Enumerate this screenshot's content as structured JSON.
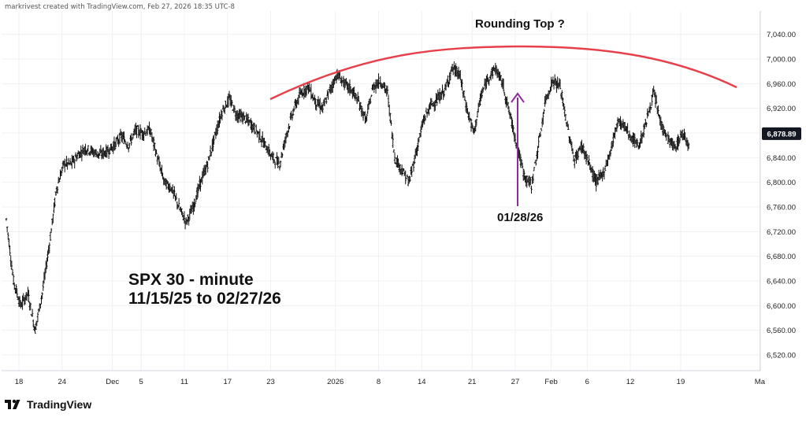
{
  "attribution": "markrivest created with TradingView.com, Feb 27, 2026 18:35 UTC-8",
  "logo_text": "TradingView",
  "colors": {
    "arc": "#e8404a",
    "arrow": "#8e2b9b",
    "bars": "#111111",
    "price_badge": "#131722",
    "grid": "#eef0f3"
  },
  "annotations": {
    "title": "Rounding Top ?",
    "arrow_label": "01/28/26",
    "main_line1": "SPX 30 - minute",
    "main_line2": "11/15/25 to 02/27/26"
  },
  "chart_data": {
    "type": "bar",
    "subtype": "ohlc",
    "instrument": "SPX",
    "timeframe": "30 - minute",
    "range_text": "11/15/25 to 02/27/26",
    "last_price": "6,878.89",
    "ylim": [
      6500,
      7060
    ],
    "y_ticks": [
      "6,520.00",
      "6,560.00",
      "6,600.00",
      "6,640.00",
      "6,680.00",
      "6,720.00",
      "6,760.00",
      "6,800.00",
      "6,840.00",
      "6,880.00",
      "6,920.00",
      "6,960.00",
      "7,000.00",
      "7,040.00"
    ],
    "y_tick_values": [
      6520,
      6560,
      6600,
      6640,
      6680,
      6720,
      6760,
      6800,
      6840,
      6880,
      6920,
      6960,
      7000,
      7040
    ],
    "x_ticks": [
      "18",
      "24",
      "Dec",
      "5",
      "11",
      "17",
      "23",
      "2026",
      "8",
      "14",
      "21",
      "27",
      "Feb",
      "6",
      "12",
      "19",
      "Ma"
    ],
    "x_tick_days": [
      0,
      6,
      13,
      17,
      23,
      29,
      35,
      44,
      50,
      56,
      63,
      69,
      74,
      79,
      85,
      92,
      103
    ],
    "grid": true,
    "session_closes": [
      {
        "day": 0,
        "close": 6740
      },
      {
        "day": 1,
        "close": 6640
      },
      {
        "day": 2,
        "close": 6600
      },
      {
        "day": 3,
        "close": 6620
      },
      {
        "day": 4,
        "close": 6560
      },
      {
        "day": 5,
        "close": 6620
      },
      {
        "day": 6,
        "close": 6700
      },
      {
        "day": 7,
        "close": 6790
      },
      {
        "day": 8,
        "close": 6830
      },
      {
        "day": 9,
        "close": 6830
      },
      {
        "day": 10,
        "close": 6845
      },
      {
        "day": 11,
        "close": 6855
      },
      {
        "day": 12,
        "close": 6850
      },
      {
        "day": 13,
        "close": 6845
      },
      {
        "day": 14,
        "close": 6850
      },
      {
        "day": 15,
        "close": 6860
      },
      {
        "day": 16,
        "close": 6875
      },
      {
        "day": 17,
        "close": 6860
      },
      {
        "day": 18,
        "close": 6885
      },
      {
        "day": 19,
        "close": 6880
      },
      {
        "day": 20,
        "close": 6885
      },
      {
        "day": 21,
        "close": 6840
      },
      {
        "day": 22,
        "close": 6800
      },
      {
        "day": 23,
        "close": 6790
      },
      {
        "day": 24,
        "close": 6760
      },
      {
        "day": 25,
        "close": 6735
      },
      {
        "day": 26,
        "close": 6760
      },
      {
        "day": 27,
        "close": 6800
      },
      {
        "day": 28,
        "close": 6830
      },
      {
        "day": 29,
        "close": 6875
      },
      {
        "day": 30,
        "close": 6915
      },
      {
        "day": 31,
        "close": 6935
      },
      {
        "day": 32,
        "close": 6910
      },
      {
        "day": 33,
        "close": 6905
      },
      {
        "day": 34,
        "close": 6895
      },
      {
        "day": 35,
        "close": 6880
      },
      {
        "day": 36,
        "close": 6860
      },
      {
        "day": 37,
        "close": 6840
      },
      {
        "day": 38,
        "close": 6830
      },
      {
        "day": 39,
        "close": 6880
      },
      {
        "day": 40,
        "close": 6920
      },
      {
        "day": 41,
        "close": 6945
      },
      {
        "day": 42,
        "close": 6955
      },
      {
        "day": 43,
        "close": 6930
      },
      {
        "day": 44,
        "close": 6920
      },
      {
        "day": 45,
        "close": 6950
      },
      {
        "day": 46,
        "close": 6975
      },
      {
        "day": 47,
        "close": 6960
      },
      {
        "day": 48,
        "close": 6950
      },
      {
        "day": 49,
        "close": 6930
      },
      {
        "day": 50,
        "close": 6900
      },
      {
        "day": 51,
        "close": 6955
      },
      {
        "day": 52,
        "close": 6965
      },
      {
        "day": 53,
        "close": 6945
      },
      {
        "day": 54,
        "close": 6840
      },
      {
        "day": 55,
        "close": 6820
      },
      {
        "day": 56,
        "close": 6800
      },
      {
        "day": 57,
        "close": 6850
      },
      {
        "day": 58,
        "close": 6900
      },
      {
        "day": 59,
        "close": 6925
      },
      {
        "day": 60,
        "close": 6935
      },
      {
        "day": 61,
        "close": 6950
      },
      {
        "day": 62,
        "close": 6985
      },
      {
        "day": 63,
        "close": 6975
      },
      {
        "day": 64,
        "close": 6920
      },
      {
        "day": 65,
        "close": 6880
      },
      {
        "day": 66,
        "close": 6940
      },
      {
        "day": 67,
        "close": 6970
      },
      {
        "day": 68,
        "close": 6985
      },
      {
        "day": 69,
        "close": 6960
      },
      {
        "day": 70,
        "close": 6910
      },
      {
        "day": 71,
        "close": 6860
      },
      {
        "day": 72,
        "close": 6810
      },
      {
        "day": 73,
        "close": 6795
      },
      {
        "day": 74,
        "close": 6860
      },
      {
        "day": 75,
        "close": 6935
      },
      {
        "day": 76,
        "close": 6965
      },
      {
        "day": 77,
        "close": 6955
      },
      {
        "day": 78,
        "close": 6890
      },
      {
        "day": 79,
        "close": 6835
      },
      {
        "day": 80,
        "close": 6860
      },
      {
        "day": 81,
        "close": 6830
      },
      {
        "day": 82,
        "close": 6800
      },
      {
        "day": 83,
        "close": 6815
      },
      {
        "day": 84,
        "close": 6850
      },
      {
        "day": 85,
        "close": 6900
      },
      {
        "day": 86,
        "close": 6890
      },
      {
        "day": 87,
        "close": 6870
      },
      {
        "day": 88,
        "close": 6860
      },
      {
        "day": 89,
        "close": 6900
      },
      {
        "day": 90,
        "close": 6945
      },
      {
        "day": 91,
        "close": 6895
      },
      {
        "day": 92,
        "close": 6870
      },
      {
        "day": 93,
        "close": 6855
      },
      {
        "day": 94,
        "close": 6880
      },
      {
        "day": 95,
        "close": 6860
      }
    ]
  }
}
